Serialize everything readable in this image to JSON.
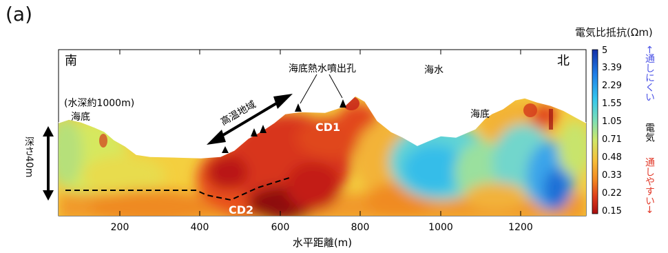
{
  "figure_label": "(a)",
  "direction_labels": {
    "south": "南",
    "north": "北"
  },
  "annotations": {
    "water_depth": "(水深約1000m)",
    "seafloor_left": "海底",
    "seafloor_right": "海底",
    "vent": "海底熱水噴出孔",
    "seawater": "海水",
    "high_temp": "高温地域",
    "cd1": "CD1",
    "cd2": "CD2",
    "depth_scale": "深さ40m"
  },
  "axis": {
    "xlabel": "水平距離(m)",
    "x_ticks": [
      "200",
      "400",
      "600",
      "800",
      "1000",
      "1200"
    ]
  },
  "colorbar": {
    "title": "電気比抵抗(Ωm)",
    "ticks": [
      "5",
      "3.39",
      "2.29",
      "1.55",
      "1.05",
      "0.71",
      "0.48",
      "0.33",
      "0.22",
      "0.15"
    ],
    "top_side_label": "←通しにくい",
    "middle_side_label": "電気",
    "bottom_side_label": "通しやすい→",
    "colors": [
      "#1530a8",
      "#1f7ee8",
      "#34c6ee",
      "#7bdfb8",
      "#cfe86a",
      "#f6c23b",
      "#f38a22",
      "#dd3b1c",
      "#a80e10"
    ]
  }
}
